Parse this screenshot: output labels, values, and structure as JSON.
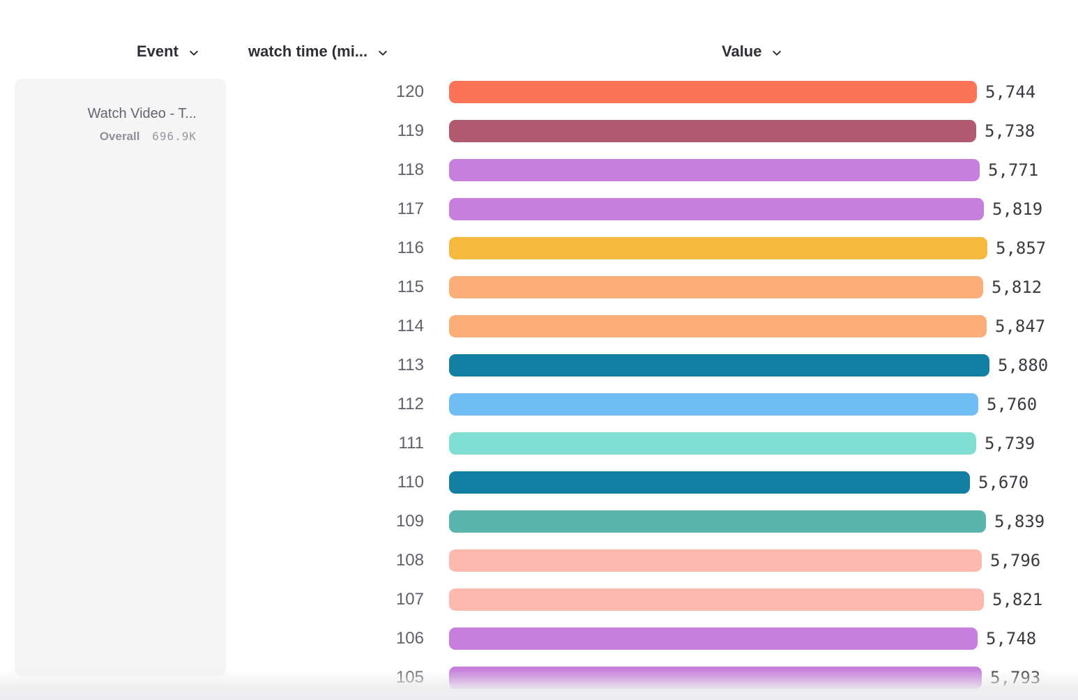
{
  "header": {
    "event_label": "Event",
    "watch_time_label": "watch time (mi...",
    "value_label": "Value"
  },
  "event_panel": {
    "title": "Watch Video - T...",
    "overall_label": "Overall",
    "overall_value": "696.9K"
  },
  "chart_data": {
    "type": "bar",
    "orientation": "horizontal",
    "xlabel": "Value",
    "ylabel": "watch time (mi...",
    "axis_max": 5880,
    "grid": false,
    "legend": false,
    "categories": [
      "120",
      "119",
      "118",
      "117",
      "116",
      "115",
      "114",
      "113",
      "112",
      "111",
      "110",
      "109",
      "108",
      "107",
      "106",
      "105"
    ],
    "values": [
      5744,
      5738,
      5771,
      5819,
      5857,
      5812,
      5847,
      5880,
      5760,
      5739,
      5670,
      5839,
      5796,
      5821,
      5748,
      5793
    ],
    "value_labels": [
      "5,744",
      "5,738",
      "5,771",
      "5,819",
      "5,857",
      "5,812",
      "5,847",
      "5,880",
      "5,760",
      "5,739",
      "5,670",
      "5,839",
      "5,796",
      "5,821",
      "5,748",
      "5,793"
    ],
    "colors": [
      "#FC7458",
      "#B25A70",
      "#C67FDC",
      "#C67FDC",
      "#F6B93F",
      "#FBAE78",
      "#FBAE78",
      "#137FA2",
      "#70BCF5",
      "#7FDFD3",
      "#137FA2",
      "#5AB5AC",
      "#FDB9AF",
      "#FDB9AF",
      "#C67FDC",
      "#C67FDC"
    ]
  },
  "layout_colors": {
    "header_text": "#2e2e36",
    "row_label_text": "#60606a",
    "value_text": "#3a3a41",
    "panel_bg": "#f5f5f6"
  }
}
